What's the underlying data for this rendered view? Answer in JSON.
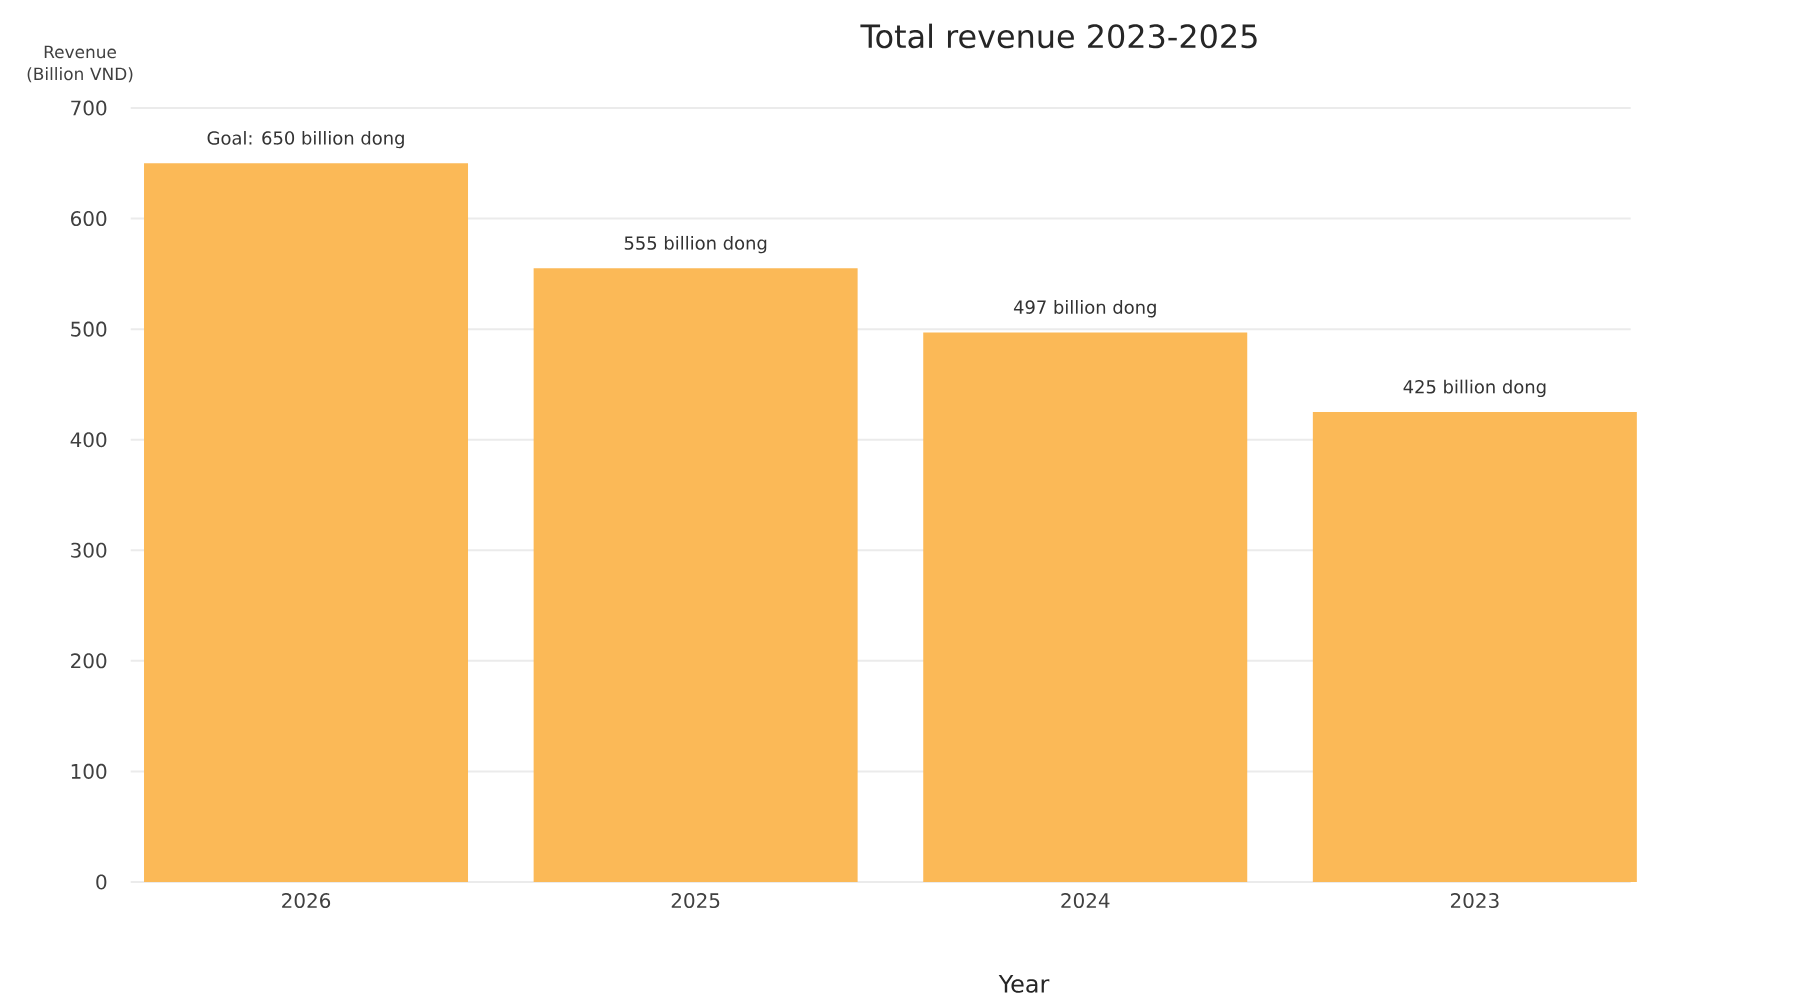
{
  "chart_data": {
    "type": "bar",
    "title": "Total revenue 2023-2025",
    "xlabel": "Year",
    "ylabel": "Revenue (Billion VND)",
    "categories": [
      "2026",
      "2025",
      "2024",
      "2023"
    ],
    "values": [
      650,
      555,
      497,
      425
    ],
    "value_labels": [
      "Goal: 650 billion dong",
      "555 billion dong",
      "497 billion dong",
      "425 billion dong"
    ],
    "color": "#fbb957",
    "ylim": [
      0,
      700
    ],
    "yticks": [
      0,
      100,
      200,
      300,
      400,
      500,
      600,
      700
    ],
    "grid": "y"
  }
}
